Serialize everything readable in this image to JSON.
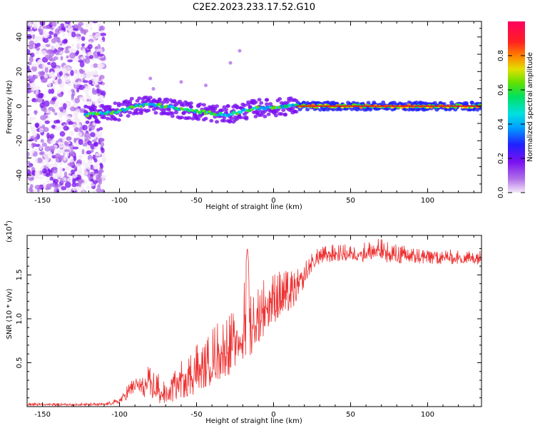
{
  "title": "C2E2.2023.233.17.52.G10",
  "chart_data": [
    {
      "type": "heatmap",
      "xlabel": "Height of straight line (km)",
      "ylabel": "Frequency (Hz)",
      "xlim": [
        -160,
        135
      ],
      "ylim": [
        -50,
        49
      ],
      "x_ticks": [
        -150,
        -100,
        -50,
        0,
        50,
        100
      ],
      "y_ticks": [
        -40,
        -20,
        0,
        20,
        40
      ],
      "colorbar": {
        "label": "Normalized spectral amplitude",
        "range": [
          0,
          1
        ],
        "ticks": [
          "0.0",
          "0.2",
          "0.4",
          "0.6",
          "0.8"
        ],
        "colors": [
          "#f4e8f8",
          "#b070e8",
          "#7a10f0",
          "#2020ff",
          "#00a0ff",
          "#00e0e0",
          "#00e060",
          "#60e000",
          "#e0e000",
          "#ff8000",
          "#ff2020",
          "#ff0060"
        ]
      },
      "ridge": {
        "x": [
          -122,
          -110,
          -100,
          -90,
          -80,
          -70,
          -60,
          -50,
          -40,
          -30,
          -20,
          -10,
          0,
          10,
          20,
          135
        ],
        "frequency": [
          -5,
          -4,
          -3,
          0,
          1,
          0,
          -2,
          -3,
          -4,
          -5,
          -3,
          -1,
          -1,
          0,
          0,
          0
        ],
        "noisy_region_x": [
          -160,
          -110
        ],
        "strong_tone_x_start": 15
      }
    },
    {
      "type": "line",
      "xlabel": "Height of straight line (km)",
      "ylabel": "SNR (10 * v/v)",
      "y_scale_label": "(x10",
      "y_scale_exp": "4",
      "xlim": [
        -160,
        135
      ],
      "ylim": [
        0,
        1.95
      ],
      "x_ticks": [
        -150,
        -100,
        -50,
        0,
        50,
        100
      ],
      "y_ticks": [
        "0.5",
        "1.0",
        "1.5"
      ],
      "line_color": "#ee3333",
      "envelope": {
        "x": [
          -160,
          -110,
          -100,
          -95,
          -90,
          -85,
          -80,
          -75,
          -70,
          -65,
          -60,
          -55,
          -50,
          -45,
          -40,
          -35,
          -30,
          -25,
          -20,
          -17,
          -15,
          -10,
          -5,
          0,
          5,
          10,
          15,
          20,
          25,
          30,
          40,
          50,
          60,
          70,
          80,
          90,
          100,
          110,
          120,
          135
        ],
        "low": [
          0.01,
          0.01,
          0.03,
          0.08,
          0.15,
          0.1,
          0.05,
          0.02,
          0.02,
          0.05,
          0.1,
          0.1,
          0.15,
          0.2,
          0.25,
          0.3,
          0.35,
          0.4,
          0.45,
          0.5,
          0.55,
          0.7,
          0.85,
          0.95,
          1.0,
          1.05,
          1.15,
          1.35,
          1.55,
          1.62,
          1.65,
          1.65,
          1.65,
          1.65,
          1.62,
          1.62,
          1.62,
          1.62,
          1.62,
          1.62
        ],
        "high": [
          0.04,
          0.04,
          0.1,
          0.25,
          0.38,
          0.35,
          0.5,
          0.4,
          0.25,
          0.45,
          0.55,
          0.6,
          0.75,
          0.7,
          0.9,
          1.0,
          1.05,
          1.1,
          1.25,
          1.82,
          1.35,
          1.4,
          1.5,
          1.55,
          1.55,
          1.55,
          1.55,
          1.65,
          1.75,
          1.82,
          1.85,
          1.85,
          1.88,
          1.92,
          1.85,
          1.82,
          1.8,
          1.8,
          1.78,
          1.78
        ]
      }
    }
  ]
}
